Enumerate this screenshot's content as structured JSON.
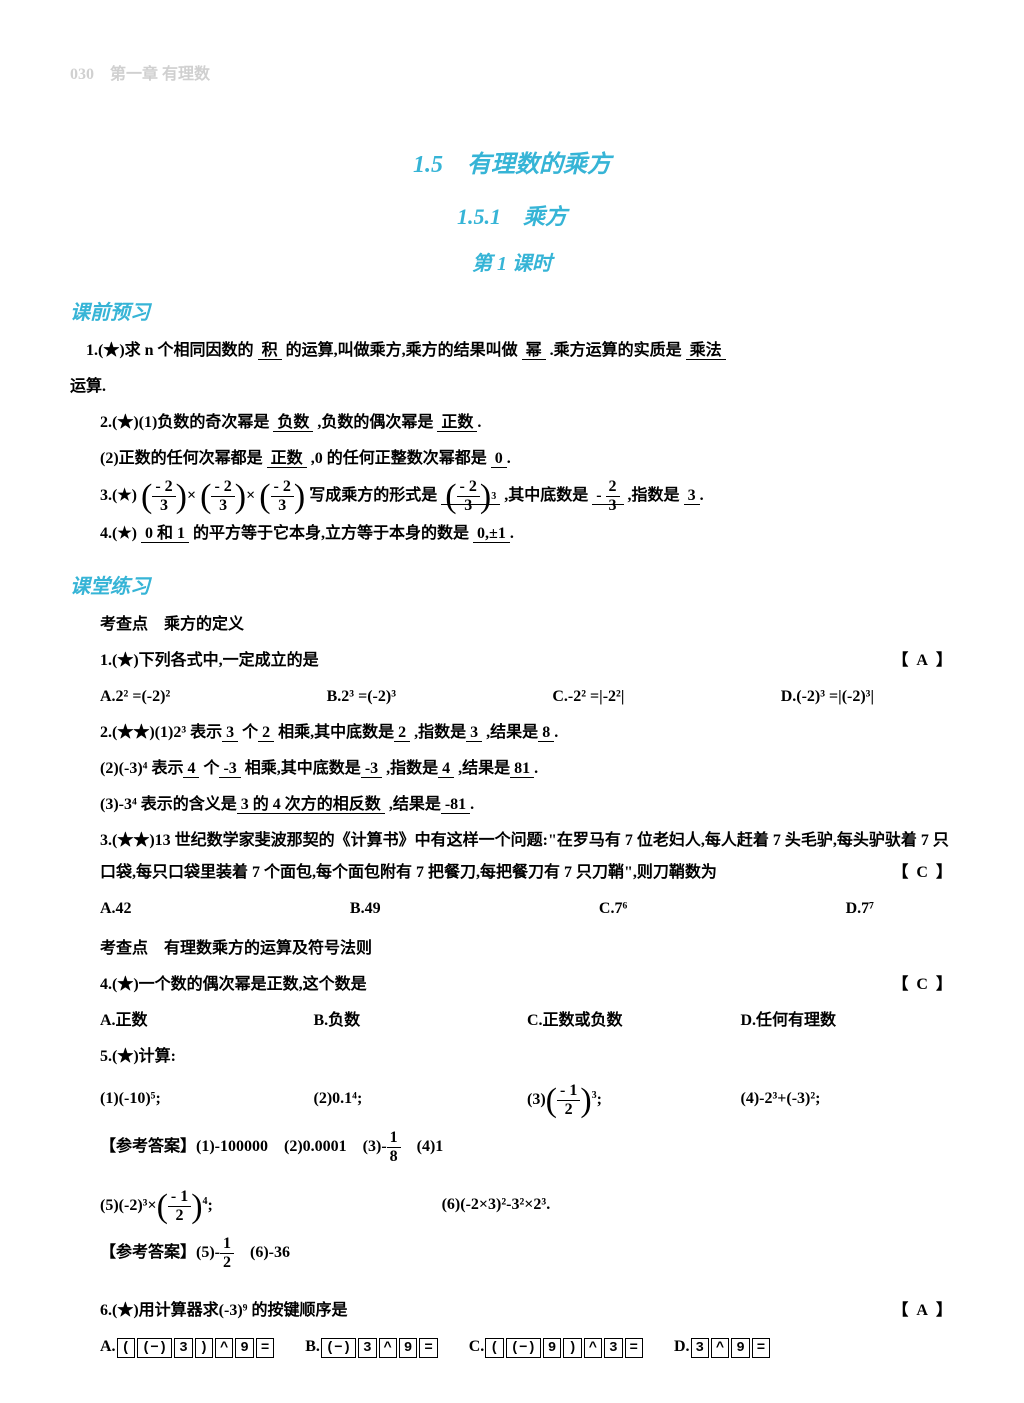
{
  "header": {
    "page": "030",
    "chapter": "第一章  有理数"
  },
  "titles": {
    "t1": "1.5　有理数的乘方",
    "t2": "1.5.1　乘方",
    "t3": "第 1 课时"
  },
  "sections": {
    "pre": "课前预习",
    "prac": "课堂练习"
  },
  "kao": {
    "k1": "考查点　乘方的定义",
    "k2": "考查点　有理数乘方的运算及符号法则"
  },
  "pre": {
    "q1a": "1.(★)求 n 个相同因数的",
    "q1b": "的运算,叫做乘方,乘方的结果叫做",
    "q1c": ".乘方运算的实质是",
    "q1d": "运算.",
    "a1a": "积",
    "a1b": "幂",
    "a1c": "乘法",
    "q2a": "2.(★)(1)负数的奇次幂是",
    "q2b": ",负数的偶次幂是",
    "a2a": "负数",
    "a2b": "正数",
    "q2c": "(2)正数的任何次幂都是",
    "q2d": ",0 的任何正整数次幂都是",
    "a2c": "正数",
    "a2d": "0",
    "q3a": "3.(★)",
    "q3b": "写成乘方的形式是",
    "q3c": ",其中底数是",
    "q3d": ",指数是",
    "a3d": "3",
    "q4a": "4.(★)",
    "a4a": "0 和 1",
    "q4b": "的平方等于它本身,立方等于本身的数是",
    "a4b": "0,±1"
  },
  "prac": {
    "q1": "1.(★)下列各式中,一定成立的是",
    "q1ans": "A",
    "q1A": "A.2² =(-2)²",
    "q1B": "B.2³ =(-2)³",
    "q1C": "C.-2² =|-2²|",
    "q1D": "D.(-2)³ =|(-2)³|",
    "q2a": "2.(★★)(1)2³ 表示",
    "a2_1": "3",
    "q2b": "个",
    "a2_2": "2",
    "q2c": "相乘,其中底数是",
    "a2_3": "2",
    "q2d": ",指数是",
    "a2_4": "3",
    "q2e": ",结果是",
    "a2_5": "8",
    "q22a": "(2)(-3)⁴ 表示",
    "a22_1": "4",
    "q22b": "个",
    "a22_2": "-3",
    "q22c": "相乘,其中底数是",
    "a22_3": "-3",
    "q22d": ",指数是",
    "a22_4": "4",
    "q22e": ",结果是",
    "a22_5": "81",
    "q23a": "(3)-3⁴ 表示的含义是",
    "a23_1": "3 的 4 次方的相反数",
    "q23b": ",结果是",
    "a23_2": "-81",
    "q3": "3.(★★)13 世纪数学家斐波那契的《计算书》中有这样一个问题:\"在罗马有 7 位老妇人,每人赶着 7 头毛驴,每头驴驮着 7 只口袋,每只口袋里装着 7 个面包,每个面包附有 7 把餐刀,每把餐刀有 7 只刀鞘\",则刀鞘数为",
    "q3ans": "C",
    "q3A": "A.42",
    "q3B": "B.49",
    "q3C": "C.7⁶",
    "q3D": "D.7⁷",
    "q4": "4.(★)一个数的偶次幂是正数,这个数是",
    "q4ans": "C",
    "q4A": "A.正数",
    "q4B": "B.负数",
    "q4C": "C.正数或负数",
    "q4D": "D.任何有理数",
    "q5": "5.(★)计算:",
    "q5_1": "(1)(-10)⁵;",
    "q5_2": "(2)0.1⁴;",
    "q5_4": "(4)-2³+(-3)²;",
    "ans5a": "【参考答案】(1)-100000　(2)0.0001　(3)",
    "ans5b": "　(4)1",
    "q5_6": "(6)(-2×3)²-3²×2³.",
    "ans5c": "【参考答案】(5)",
    "ans5d": "　(6)-36",
    "q6": "6.(★)用计算器求(-3)⁹ 的按键顺序是",
    "q6ans": "A"
  },
  "keys": {
    "A": [
      "(",
      "(−)",
      "3",
      ")",
      "^",
      "9",
      "="
    ],
    "B": [
      "(−)",
      "3",
      "^",
      "9",
      "="
    ],
    "C": [
      "(",
      "(−)",
      "9",
      ")",
      "^",
      "3",
      "="
    ],
    "D": [
      "3",
      "^",
      "9",
      "="
    ]
  }
}
